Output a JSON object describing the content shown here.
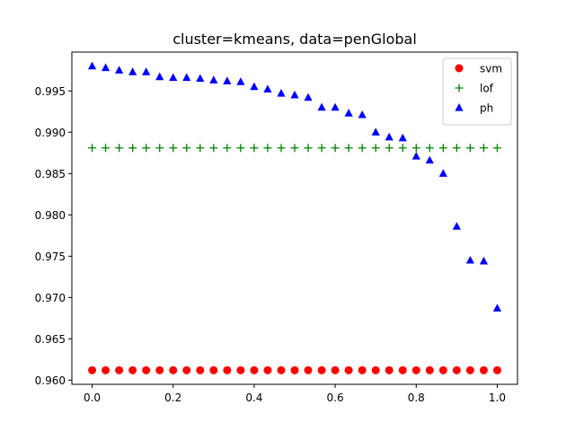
{
  "chart_data": {
    "type": "scatter",
    "title": "cluster=kmeans, data=penGlobal",
    "xlabel": "",
    "ylabel": "",
    "xlim": [
      -0.05,
      1.05
    ],
    "ylim": [
      0.9595,
      0.9997
    ],
    "x_ticks": [
      0.0,
      0.2,
      0.4,
      0.6,
      0.8,
      1.0
    ],
    "x_tick_labels": [
      "0.0",
      "0.2",
      "0.4",
      "0.6",
      "0.8",
      "1.0"
    ],
    "y_ticks": [
      0.96,
      0.965,
      0.97,
      0.975,
      0.98,
      0.985,
      0.99,
      0.995
    ],
    "y_tick_labels": [
      "0.960",
      "0.965",
      "0.970",
      "0.975",
      "0.980",
      "0.985",
      "0.990",
      "0.995"
    ],
    "grid": false,
    "legend_position": "top-right",
    "x": [
      0.0,
      0.0333,
      0.0667,
      0.1,
      0.1333,
      0.1667,
      0.2,
      0.2333,
      0.2667,
      0.3,
      0.3333,
      0.3667,
      0.4,
      0.4333,
      0.4667,
      0.5,
      0.5333,
      0.5667,
      0.6,
      0.6333,
      0.6667,
      0.7,
      0.7333,
      0.7667,
      0.8,
      0.8333,
      0.8667,
      0.9,
      0.9333,
      0.9667,
      1.0
    ],
    "series": [
      {
        "name": "svm",
        "marker": "circle",
        "color": "#ff0000",
        "values": [
          0.9612,
          0.9612,
          0.9612,
          0.9612,
          0.9612,
          0.9612,
          0.9612,
          0.9612,
          0.9612,
          0.9612,
          0.9612,
          0.9612,
          0.9612,
          0.9612,
          0.9612,
          0.9612,
          0.9612,
          0.9612,
          0.9612,
          0.9612,
          0.9612,
          0.9612,
          0.9612,
          0.9612,
          0.9612,
          0.9612,
          0.9612,
          0.9612,
          0.9612,
          0.9612,
          0.9612
        ]
      },
      {
        "name": "lof",
        "marker": "plus",
        "color": "#008000",
        "values": [
          0.9881,
          0.9881,
          0.9881,
          0.9881,
          0.9881,
          0.9881,
          0.9881,
          0.9881,
          0.9881,
          0.9881,
          0.9881,
          0.9881,
          0.9881,
          0.9881,
          0.9881,
          0.9881,
          0.9881,
          0.9881,
          0.9881,
          0.9881,
          0.9881,
          0.9881,
          0.9881,
          0.9881,
          0.9881,
          0.9881,
          0.9881,
          0.9881,
          0.9881,
          0.9881,
          0.9881
        ]
      },
      {
        "name": "ph",
        "marker": "triangle",
        "color": "#0000ff",
        "values": [
          0.998,
          0.9978,
          0.9975,
          0.9973,
          0.9973,
          0.9967,
          0.9966,
          0.9966,
          0.9965,
          0.9963,
          0.9962,
          0.9961,
          0.9955,
          0.9952,
          0.9947,
          0.9945,
          0.9942,
          0.993,
          0.993,
          0.9923,
          0.9921,
          0.99,
          0.9894,
          0.9893,
          0.9871,
          0.9866,
          0.985,
          0.9786,
          0.9745,
          0.9744,
          0.9687
        ]
      }
    ]
  }
}
